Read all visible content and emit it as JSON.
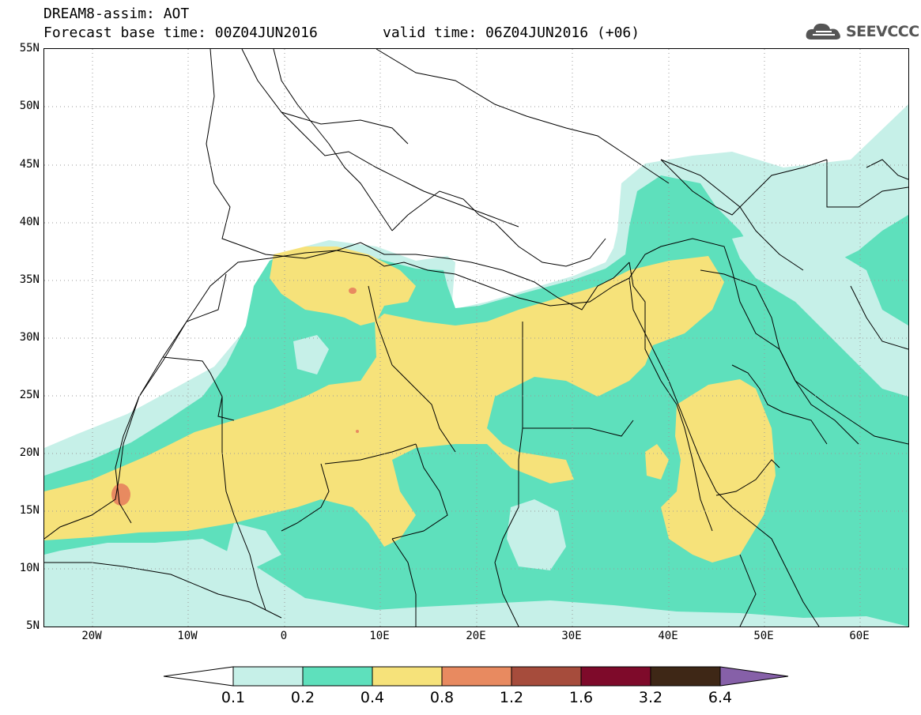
{
  "title": {
    "line1": "DREAM8-assim: AOT",
    "base_time": "Forecast base time: 00Z04JUN2016",
    "valid_time": "valid time: 06Z04JUN2016 (+06)"
  },
  "logo": {
    "text": "SEEVCCC",
    "icon": "cloud-icon"
  },
  "map": {
    "variable": "AOT",
    "lon_range": [
      -25,
      65
    ],
    "lat_range": [
      5,
      55
    ],
    "lat_ticks": [
      "55N",
      "50N",
      "45N",
      "40N",
      "35N",
      "30N",
      "25N",
      "20N",
      "15N",
      "10N",
      "5N"
    ],
    "lon_ticks": [
      "20W",
      "10W",
      "0",
      "10E",
      "20E",
      "30E",
      "40E",
      "50E",
      "60E"
    ],
    "grid": "dotted"
  },
  "colorbar": {
    "levels": [
      "0.1",
      "0.2",
      "0.4",
      "0.8",
      "1.2",
      "1.6",
      "3.2",
      "6.4"
    ],
    "colors": [
      "#ffffff",
      "#c6f0e8",
      "#5ee0bc",
      "#f6e27a",
      "#e88a60",
      "#a64c3c",
      "#7e0a2a",
      "#3e2716",
      "#8660a8"
    ]
  }
}
